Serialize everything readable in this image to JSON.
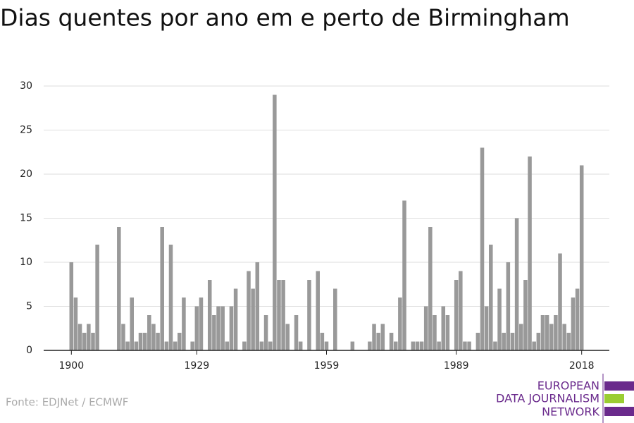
{
  "chart_data": {
    "type": "bar",
    "title": "Dias quentes por ano em e perto de Birmingham",
    "source": "Fonte: EDJNet / ECMWF",
    "logo": [
      "EUROPEAN",
      "DATA JOURNALISM",
      "NETWORK"
    ],
    "color": "#999999",
    "x": [
      1900,
      1901,
      1902,
      1903,
      1904,
      1905,
      1906,
      1907,
      1908,
      1909,
      1910,
      1911,
      1912,
      1913,
      1914,
      1915,
      1916,
      1917,
      1918,
      1919,
      1920,
      1921,
      1922,
      1923,
      1924,
      1925,
      1926,
      1927,
      1928,
      1929,
      1930,
      1931,
      1932,
      1933,
      1934,
      1935,
      1936,
      1937,
      1938,
      1939,
      1940,
      1941,
      1942,
      1943,
      1944,
      1945,
      1946,
      1947,
      1948,
      1949,
      1950,
      1951,
      1952,
      1953,
      1954,
      1955,
      1956,
      1957,
      1958,
      1959,
      1960,
      1961,
      1962,
      1963,
      1964,
      1965,
      1966,
      1967,
      1968,
      1969,
      1970,
      1971,
      1972,
      1973,
      1974,
      1975,
      1976,
      1977,
      1978,
      1979,
      1980,
      1981,
      1982,
      1983,
      1984,
      1985,
      1986,
      1987,
      1988,
      1989,
      1990,
      1991,
      1992,
      1993,
      1994,
      1995,
      1996,
      1997,
      1998,
      1999,
      2000,
      2001,
      2002,
      2003,
      2004,
      2005,
      2006,
      2007,
      2008,
      2009,
      2010,
      2011,
      2012,
      2013,
      2014,
      2015,
      2016,
      2017,
      2018
    ],
    "values": [
      10,
      6,
      3,
      2,
      3,
      2,
      12,
      0,
      0,
      0,
      0,
      14,
      3,
      1,
      6,
      1,
      2,
      2,
      4,
      3,
      2,
      14,
      1,
      12,
      1,
      2,
      6,
      0,
      1,
      5,
      6,
      0,
      8,
      4,
      5,
      5,
      1,
      5,
      7,
      0,
      1,
      9,
      7,
      10,
      1,
      4,
      1,
      29,
      8,
      8,
      3,
      0,
      4,
      1,
      0,
      8,
      0,
      9,
      2,
      1,
      0,
      7,
      0,
      0,
      0,
      1,
      0,
      0,
      0,
      1,
      3,
      2,
      3,
      0,
      2,
      1,
      6,
      17,
      0,
      1,
      1,
      1,
      5,
      14,
      4,
      1,
      5,
      4,
      0,
      8,
      9,
      1,
      1,
      0,
      2,
      23,
      5,
      12,
      1,
      7,
      2,
      10,
      2,
      15,
      3,
      8,
      22,
      1,
      2,
      4,
      4,
      3,
      4,
      11,
      3,
      2,
      6,
      7,
      21
    ],
    "xlim": [
      1893.6,
      2024.4
    ],
    "xticks": [
      1900,
      1929,
      1959,
      1989,
      2018
    ],
    "ylim": [
      0,
      30
    ],
    "yticks": [
      0,
      5,
      10,
      15,
      20,
      25,
      30
    ],
    "grid": true
  }
}
